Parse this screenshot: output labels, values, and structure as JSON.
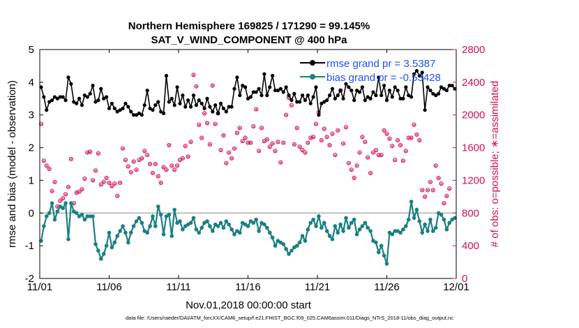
{
  "chart_data": {
    "type": "line",
    "title": "Northern Hemisphere 169825 / 171290 = 99.145%",
    "subtitle": "SAT_V_WIND_COMPONENT @ 400 hPa",
    "xlabel": "Nov.01,2018 00:00:00 start",
    "ylabel_left": "rmse and bias (model - observation)",
    "ylabel_right": "# of obs: o=possible; ∗=assimilated",
    "footer": "data file: /Users/raeder/DAI/ATM_forcXX/CAM6_setup/f.e21.FHIST_BGC.f09_025.CAM6assim.011/Diags_NTrS_2018-11/obs_diag_output.nc",
    "x_ticks": [
      "11/01",
      "11/06",
      "11/11",
      "11/16",
      "11/21",
      "11/26",
      "12/01"
    ],
    "x_tick_days": [
      0,
      5,
      10,
      15,
      20,
      25,
      30
    ],
    "xlim": [
      0,
      30
    ],
    "ylim_left": [
      -2,
      5
    ],
    "y_ticks_left": [
      "-2",
      "-1",
      "0",
      "1",
      "2",
      "3",
      "4",
      "5"
    ],
    "ylim_right": [
      0,
      2800
    ],
    "y_ticks_right": [
      "0",
      "400",
      "800",
      "1200",
      "1600",
      "2000",
      "2400",
      "2800"
    ],
    "colors": {
      "rmse": "#000000",
      "bias": "#1a8080",
      "obs": "#d0105a",
      "zero_line": "#b0b0b0",
      "legend_text": "#1f4fff"
    },
    "legend": {
      "rmse_label": "rmse grand pr = 3.5387",
      "bias_label": "bias grand pr = -0.53428"
    },
    "series_rmse": {
      "name": "rmse",
      "values": [
        3.85,
        3.55,
        3.15,
        3.4,
        3.45,
        3.55,
        3.5,
        3.55,
        3.55,
        3.45,
        4.15,
        3.95,
        3.4,
        3.35,
        3.5,
        3.3,
        3.6,
        3.55,
        3.65,
        3.9,
        3.4,
        3.45,
        3.8,
        3.5,
        3.55,
        3.2,
        3.35,
        3.2,
        3.1,
        3.15,
        3.2,
        3.35,
        3.25,
        3.1,
        3.0,
        3.0,
        3.05,
        3.0,
        3.3,
        3.75,
        3.2,
        3.15,
        3.3,
        3.4,
        3.1,
        3.05,
        4.2,
        3.4,
        3.5,
        3.3,
        3.85,
        3.35,
        3.6,
        3.25,
        3.45,
        3.25,
        3.6,
        3.3,
        3.45,
        3.35,
        3.2,
        3.5,
        3.25,
        3.1,
        3.3,
        3.05,
        3.35,
        3.2,
        3.1,
        3.25,
        3.25,
        3.8,
        4.15,
        3.6,
        3.9,
        3.85,
        3.5,
        3.55,
        3.7,
        3.7,
        3.8,
        3.6,
        4.25,
        3.6,
        3.85,
        4.2,
        3.75,
        3.75,
        3.8,
        3.7,
        3.85,
        3.6,
        3.45,
        3.65,
        3.4,
        3.4,
        3.6,
        3.45,
        3.6,
        3.35,
        3.55,
        3.85,
        3.0,
        3.35,
        3.4,
        3.45,
        3.6,
        3.8,
        3.5,
        3.6,
        3.75,
        3.5,
        3.95,
        3.85,
        3.75,
        3.45,
        3.75,
        3.7,
        3.85,
        3.45,
        3.55,
        3.5,
        3.7,
        3.6,
        4.15,
        3.6,
        3.9,
        3.45,
        3.75,
        3.55,
        3.85,
        3.75,
        3.5,
        3.5,
        3.85,
        3.6,
        3.55,
        4.25,
        4.35,
        4.2,
        4.3,
        3.15,
        3.85,
        3.75,
        3.65,
        3.6,
        3.65,
        3.85,
        3.8,
        3.75,
        3.9,
        3.9,
        3.8
      ]
    },
    "series_bias": {
      "name": "bias",
      "values": [
        -0.85,
        -0.4,
        -0.1,
        0.0,
        0.3,
        -0.2,
        0.05,
        0.2,
        0.15,
        0.3,
        -0.8,
        0.3,
        0.05,
        0.0,
        -0.1,
        -0.05,
        -0.2,
        -0.1,
        -0.1,
        -0.1,
        -0.95,
        -1.15,
        -1.4,
        -1.25,
        -1.0,
        -0.6,
        -1.05,
        -0.9,
        -0.7,
        -0.55,
        -0.4,
        -0.6,
        -0.9,
        -0.6,
        -0.4,
        -0.25,
        -0.15,
        -0.3,
        -0.55,
        -0.6,
        -0.4,
        -0.1,
        -0.4,
        0.2,
        -0.05,
        -0.65,
        -0.1,
        -0.05,
        -0.7,
        0.1,
        -0.3,
        -0.25,
        -0.5,
        -0.4,
        -0.35,
        -0.3,
        -0.15,
        -0.5,
        -0.6,
        -0.45,
        -0.3,
        -0.25,
        -0.4,
        -0.55,
        -0.35,
        -0.4,
        -0.3,
        -0.45,
        -0.25,
        -0.35,
        -0.5,
        -0.65,
        -0.55,
        -0.6,
        -0.3,
        -0.35,
        -0.4,
        -0.25,
        -0.3,
        -0.2,
        -0.55,
        -0.3,
        -0.35,
        -0.45,
        -0.6,
        -0.75,
        -1.0,
        -0.85,
        -0.9,
        -0.95,
        -1.1,
        -1.25,
        -1.15,
        -1.05,
        -1.0,
        -0.9,
        -0.7,
        -0.85,
        -0.5,
        -0.3,
        -0.2,
        -0.4,
        -0.1,
        -0.45,
        -0.3,
        -0.55,
        -0.7,
        -0.8,
        -0.4,
        -0.6,
        -0.35,
        -0.55,
        -0.15,
        -0.45,
        -0.3,
        -0.2,
        -0.65,
        -0.5,
        -0.4,
        -0.3,
        -0.45,
        -0.55,
        -0.85,
        -0.9,
        -1.2,
        -1.0,
        -1.3,
        -1.55,
        -0.6,
        -0.65,
        -0.55,
        -0.55,
        -0.6,
        -0.5,
        -0.4,
        -0.2,
        0.35,
        -0.15,
        0.1,
        -0.25,
        -0.6,
        -0.35,
        -0.55,
        -0.2,
        -0.55,
        -0.45,
        0.0,
        -0.05,
        -0.2,
        -0.5,
        -0.3,
        -0.2,
        -0.15
      ]
    },
    "series_obs_possible": {
      "name": "possible",
      "values": [
        1890,
        1440,
        1380,
        1340,
        1070,
        1180,
        880,
        950,
        980,
        1030,
        1120,
        1460,
        920,
        1050,
        1060,
        1090,
        1220,
        1540,
        1550,
        1200,
        1320,
        1530,
        1150,
        1180,
        1230,
        1170,
        1130,
        1160,
        1010,
        1170,
        1590,
        1450,
        1370,
        1300,
        1430,
        1330,
        1450,
        1470,
        1560,
        1510,
        1400,
        1290,
        1400,
        1250,
        1170,
        1360,
        1330,
        1630,
        1380,
        1330,
        1380,
        1450,
        1470,
        1620,
        1490,
        1670,
        2490,
        2350,
        1880,
        1720,
        2020,
        1900,
        1640,
        2360,
        1890,
        2020,
        1570,
        1750,
        1410,
        1540,
        1470,
        1590,
        1780,
        1840,
        1680,
        1720,
        1660,
        1660,
        1860,
        2070,
        1560,
        1840,
        1680,
        1700,
        1610,
        1650,
        1560,
        1670,
        1420,
        1660,
        2000,
        2210,
        2120,
        1640,
        1840,
        1610,
        1570,
        1540,
        1660,
        1720,
        1730,
        1890,
        2030,
        1690,
        1830,
        1730,
        1630,
        1770,
        1510,
        1810,
        2300,
        1650,
        1850,
        1410,
        1330,
        1230,
        1380,
        1540,
        1730,
        1670,
        1480,
        1290,
        1540,
        1570,
        1510,
        1510,
        1810,
        1770,
        1710,
        1620,
        1450,
        1690,
        1630,
        1440,
        1560,
        1720,
        1720,
        1880,
        1760,
        1690,
        1080,
        1000,
        1080,
        1180,
        1080,
        1380,
        1230,
        1160,
        920,
        1010,
        1100
      ]
    },
    "series_obs_assimilated": {
      "name": "assimilated",
      "values": [
        1880,
        1430,
        1370,
        1330,
        1060,
        1170,
        870,
        940,
        970,
        1020,
        1110,
        1450,
        910,
        1040,
        1050,
        1080,
        1210,
        1530,
        1540,
        1190,
        1310,
        1520,
        1140,
        1170,
        1220,
        1160,
        1120,
        1150,
        1000,
        1160,
        1580,
        1440,
        1360,
        1290,
        1420,
        1320,
        1440,
        1460,
        1550,
        1500,
        1390,
        1280,
        1390,
        1240,
        1160,
        1350,
        1320,
        1620,
        1370,
        1320,
        1370,
        1440,
        1460,
        1610,
        1480,
        1660,
        2480,
        2340,
        1870,
        1710,
        2010,
        1890,
        1630,
        2350,
        1880,
        2010,
        1560,
        1740,
        1400,
        1530,
        1460,
        1580,
        1770,
        1830,
        1670,
        1710,
        1650,
        1650,
        1850,
        2060,
        1550,
        1830,
        1670,
        1690,
        1600,
        1640,
        1550,
        1660,
        1410,
        1650,
        1990,
        2200,
        2110,
        1630,
        1830,
        1600,
        1560,
        1530,
        1650,
        1710,
        1720,
        1880,
        2020,
        1680,
        1820,
        1720,
        1620,
        1760,
        1500,
        1800,
        2290,
        1640,
        1840,
        1400,
        1320,
        1220,
        1370,
        1530,
        1720,
        1660,
        1470,
        1280,
        1530,
        1560,
        1500,
        1500,
        1800,
        1760,
        1700,
        1610,
        1440,
        1680,
        1620,
        1430,
        1550,
        1710,
        1710,
        1870,
        1750,
        1680,
        1070,
        990,
        1070,
        1170,
        1070,
        1370,
        1220,
        1150,
        910,
        1000,
        1090
      ]
    }
  }
}
